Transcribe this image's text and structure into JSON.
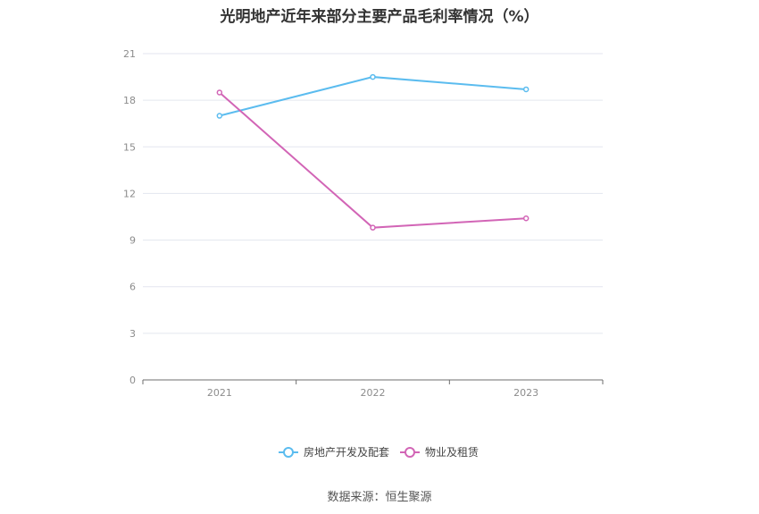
{
  "title": "光明地产近年来部分主要产品毛利率情况（%）",
  "source": "数据来源：恒生聚源",
  "chart_data": {
    "type": "line",
    "categories": [
      "2021",
      "2022",
      "2023"
    ],
    "series": [
      {
        "name": "房地产开发及配套",
        "values": [
          17.0,
          19.5,
          18.7
        ],
        "color": "#5bbcef"
      },
      {
        "name": "物业及租赁",
        "values": [
          18.5,
          9.8,
          10.4
        ],
        "color": "#d265b6"
      }
    ],
    "y_ticks": [
      "0",
      "3",
      "6",
      "9",
      "12",
      "15",
      "18",
      "21"
    ],
    "ylim": [
      0,
      21
    ],
    "grid": true,
    "legend_position": "bottom"
  }
}
